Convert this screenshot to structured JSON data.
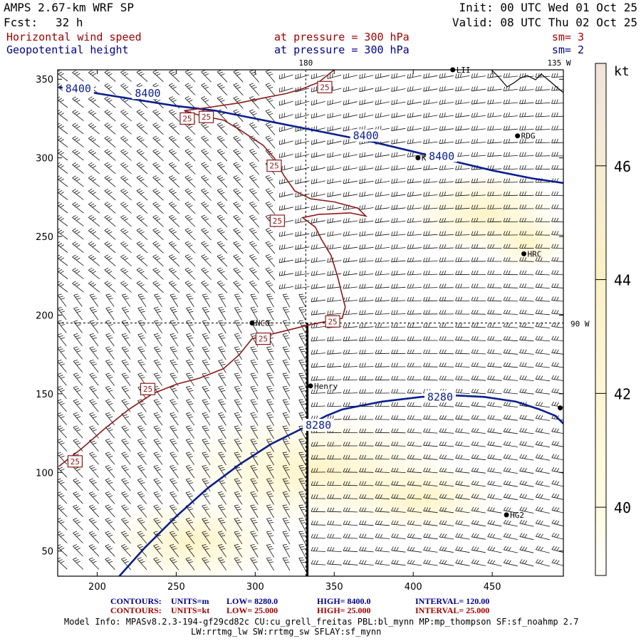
{
  "header": {
    "title": "AMPS 2.67-km WRF SP",
    "init": "Init: 00 UTC Wed 01 Oct 25",
    "forecast_label": "Fcst:",
    "forecast_hours": "32 h",
    "valid": "Valid: 08 UTC Thu 02 Oct 25",
    "field1": "Horizontal wind speed",
    "field1_level": "at pressure =  300 hPa",
    "field1_smooth": "sm= 3",
    "field2": "Geopotential height",
    "field2_level": "at pressure =  300 hPa",
    "field2_smooth": "sm= 2"
  },
  "colors": {
    "field1_text": "#a00000",
    "field2_text": "#00008b",
    "height_contour": "#0a1f8f",
    "speed_contour": "#8b1a1a",
    "shade_low": "#fff6cf",
    "shade_high": "#f3e9d8"
  },
  "chart_data": {
    "type": "contour-map",
    "x_ticks": [
      200,
      250,
      300,
      350,
      400,
      450
    ],
    "y_ticks": [
      50,
      100,
      150,
      200,
      250,
      300,
      350
    ],
    "xlim": [
      175,
      495
    ],
    "ylim": [
      34,
      356
    ],
    "meridian_labels": [
      "180",
      "135 W",
      "90 W"
    ],
    "meridian_180_x": 332,
    "reference_y": 195,
    "cross_section_line": {
      "x": 333,
      "y": [
        34,
        195
      ]
    },
    "height_contours": [
      {
        "label": "8400",
        "points": [
          [
            176,
            345
          ],
          [
            200,
            341
          ],
          [
            225,
            337
          ],
          [
            250,
            333
          ],
          [
            275,
            330
          ],
          [
            300,
            325
          ],
          [
            325,
            320
          ],
          [
            350,
            315
          ],
          [
            375,
            310
          ],
          [
            400,
            304
          ],
          [
            425,
            298
          ],
          [
            450,
            292
          ],
          [
            475,
            287
          ],
          [
            495,
            284
          ]
        ]
      },
      {
        "label": "8280",
        "points": [
          [
            214,
            34
          ],
          [
            230,
            52
          ],
          [
            250,
            72
          ],
          [
            270,
            90
          ],
          [
            290,
            105
          ],
          [
            310,
            118
          ],
          [
            330,
            128
          ],
          [
            345,
            136
          ],
          [
            355,
            140
          ],
          [
            380,
            145
          ],
          [
            405,
            148
          ],
          [
            425,
            149
          ],
          [
            445,
            148
          ],
          [
            465,
            145
          ],
          [
            480,
            140
          ],
          [
            490,
            136
          ],
          [
            495,
            131
          ]
        ]
      }
    ],
    "speed_contours": [
      {
        "label": "25",
        "points": [
          [
            176,
            104
          ],
          [
            190,
            115
          ],
          [
            205,
            128
          ],
          [
            220,
            140
          ],
          [
            235,
            150
          ],
          [
            250,
            156
          ],
          [
            265,
            160
          ],
          [
            280,
            166
          ],
          [
            290,
            175
          ],
          [
            298,
            185
          ],
          [
            315,
            189
          ],
          [
            335,
            194
          ],
          [
            355,
            198
          ],
          [
            357,
            205
          ],
          [
            352,
            225
          ],
          [
            348,
            238
          ],
          [
            342,
            248
          ],
          [
            338,
            256
          ],
          [
            330,
            262
          ],
          [
            340,
            264
          ],
          [
            360,
            265
          ],
          [
            370,
            263
          ],
          [
            365,
            268
          ],
          [
            350,
            272
          ],
          [
            335,
            274
          ],
          [
            325,
            279
          ],
          [
            318,
            289
          ],
          [
            312,
            300
          ],
          [
            305,
            308
          ],
          [
            290,
            318
          ],
          [
            280,
            324
          ],
          [
            265,
            327
          ],
          [
            255,
            330
          ],
          [
            270,
            332
          ],
          [
            290,
            335
          ],
          [
            305,
            338
          ],
          [
            320,
            341
          ],
          [
            330,
            344
          ],
          [
            340,
            348
          ],
          [
            350,
            356
          ]
        ]
      }
    ],
    "contour_labels": [
      {
        "text": "8400",
        "x": 188,
        "y": 344
      },
      {
        "text": "8400",
        "x": 232,
        "y": 341
      },
      {
        "text": "8400",
        "x": 370,
        "y": 314
      },
      {
        "text": "8400",
        "x": 418,
        "y": 301
      },
      {
        "text": "8280",
        "x": 340,
        "y": 130
      },
      {
        "text": "8280",
        "x": 417,
        "y": 148
      },
      {
        "text": "25",
        "x": 344,
        "y": 345
      },
      {
        "text": "25",
        "x": 257,
        "y": 325
      },
      {
        "text": "25",
        "x": 269,
        "y": 326
      },
      {
        "text": "25",
        "x": 312,
        "y": 295
      },
      {
        "text": "25",
        "x": 314,
        "y": 260
      },
      {
        "text": "25",
        "x": 349,
        "y": 196
      },
      {
        "text": "25",
        "x": 305,
        "y": 185
      },
      {
        "text": "25",
        "x": 232,
        "y": 153
      },
      {
        "text": "25",
        "x": 186,
        "y": 107
      }
    ],
    "stations": [
      {
        "name": "LII",
        "x": 425,
        "y": 356
      },
      {
        "name": "RDG",
        "x": 466,
        "y": 314
      },
      {
        "name": "KEN",
        "x": 403,
        "y": 300
      },
      {
        "name": "HRC",
        "x": 470,
        "y": 239
      },
      {
        "name": "NCO",
        "x": 298,
        "y": 195
      },
      {
        "name": "Henry",
        "x": 335,
        "y": 155
      },
      {
        "name": "HG2",
        "x": 459,
        "y": 73
      },
      {
        "name": "",
        "x": 493,
        "y": 141
      }
    ],
    "colorbar": {
      "unit": "kt",
      "ticks": [
        40,
        42,
        44,
        46
      ],
      "range": [
        38.8,
        47.8
      ]
    }
  },
  "footer": {
    "line1_label": "CONTOURS:",
    "line1_units": "UNITS=m",
    "line1_low": "LOW=  8280.0",
    "line1_high": "HIGH=  8400.0",
    "line1_interval": "INTERVAL=   120.00",
    "line2_label": "CONTOURS:",
    "line2_units": "UNITS=kt",
    "line2_low": "LOW=  25.000",
    "line2_high": "HIGH=  25.000",
    "line2_interval": "INTERVAL=   25.000",
    "model_info_1": "Model Info: MPASv8.2.3-194-gf29cd82c CU:cu_grell_freitas PBL:bl_mynn MP:mp_thompson SF:sf_noahmp 2.7",
    "model_info_2": "LW:rrtmg_lw SW:rrtmg_sw SFLAY:sf_mynn"
  }
}
